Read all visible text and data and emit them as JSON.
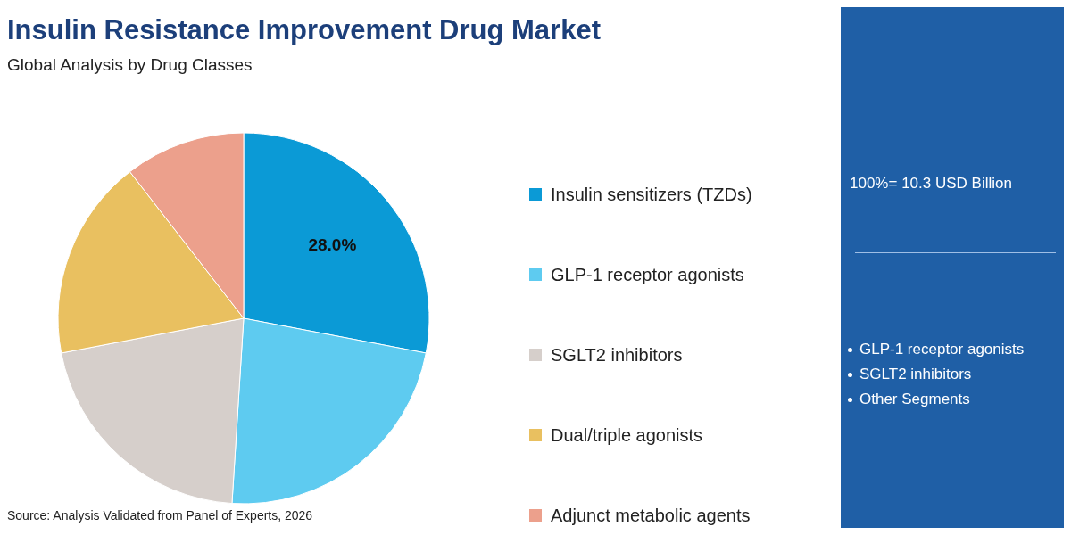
{
  "chart_data": {
    "type": "pie",
    "title": "Insulin Resistance Improvement Drug Market",
    "subtitle": "Global Analysis by Drug Classes",
    "categories": [
      "Insulin sensitizers (TZDs)",
      "GLP-1 receptor agonists",
      "SGLT2 inhibitors",
      "Dual/triple agonists",
      "Adjunct metabolic agents"
    ],
    "values": [
      28,
      23,
      21,
      17.5,
      10.5
    ],
    "colors": [
      "#0b9ad6",
      "#5ecbf0",
      "#d6cfcb",
      "#e9c060",
      "#eca08c"
    ],
    "value_labels": [
      "28.0%",
      null,
      null,
      null,
      null
    ],
    "legend": "right",
    "annotations": [
      "100%= 10.3 USD Billion",
      "GLP-1 receptor agonists",
      "SGLT2 inhibitors",
      "Other Segments",
      "Source: Analysis Validated from Panel of Experts, 2026"
    ]
  }
}
